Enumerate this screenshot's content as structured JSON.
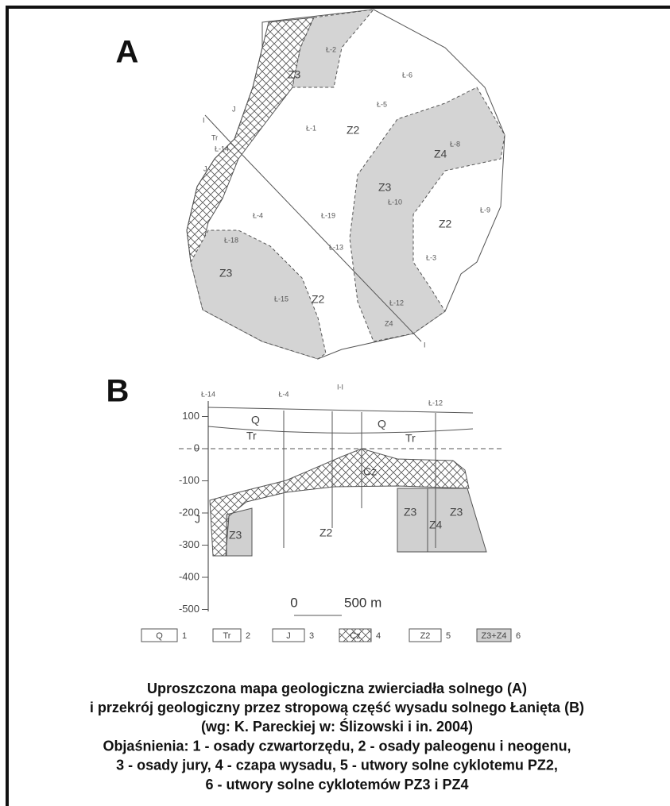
{
  "panel_labels": [
    "A",
    "B"
  ],
  "map": {
    "labels": [
      "Ł-2",
      "Z3",
      "Ł-6",
      "J",
      "Ł-5",
      "I",
      "Ł-1",
      "Z2",
      "Tr",
      "Ł-14",
      "Z4",
      "Ł-8",
      "J",
      "Z3",
      "Ł-10",
      "Ł-4",
      "Ł-19",
      "Z2",
      "Ł-9",
      "Ł-18",
      "Ł-13",
      "Ł-3",
      "Z3",
      "Ł-15",
      "Z2",
      "Ł-12",
      "Z4",
      "I"
    ]
  },
  "section": {
    "wells": [
      "Ł-14",
      "Ł-4",
      "I-I",
      "Ł-12"
    ],
    "yticks": [
      100,
      0,
      -100,
      -200,
      -300,
      -400,
      -500
    ],
    "labels": [
      "Q",
      "Q",
      "Tr",
      "Tr",
      "Cz",
      "J",
      "Z3",
      "Z2",
      "Z3",
      "Z4",
      "Z3"
    ],
    "scale": [
      "0",
      "500 m"
    ]
  },
  "legend": [
    {
      "symbol": "Q",
      "number": 1
    },
    {
      "symbol": "Tr",
      "number": 2
    },
    {
      "symbol": "J",
      "number": 3
    },
    {
      "symbol": "Cz",
      "number": 4
    },
    {
      "symbol": "Z2",
      "number": 5
    },
    {
      "symbol": "Z3+Z4",
      "number": 6
    }
  ],
  "caption": [
    "Uproszczona mapa geologiczna zwierciadła solnego (A)",
    "i przekrój geologiczny przez stropową część wysadu solnego Łanięta (B)",
    "(wg: K. Pareckiej w: Ślizowski i in. 2004)",
    "Objaśnienia:  1 - osady czwartorzędu, 2 - osady paleogenu i neogenu,",
    "3 - osady jury, 4 - czapa wysadu, 5 - utwory solne cyklotemu PZ2,",
    "6 - utwory solne cyklotemów PZ3 i PZ4"
  ]
}
